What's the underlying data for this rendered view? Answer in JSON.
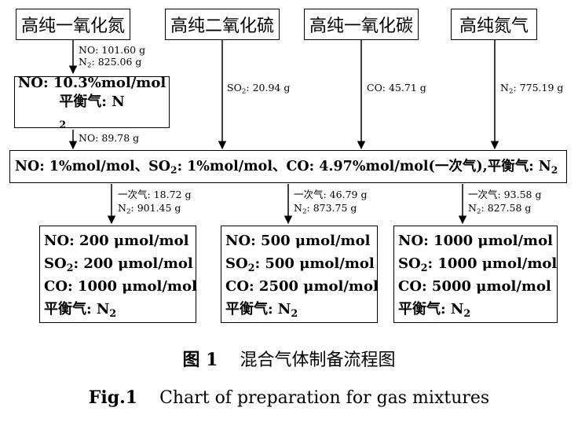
{
  "sources": [
    {
      "id": "no",
      "label": "高纯一氧化氮"
    },
    {
      "id": "so2",
      "label": "高纯二氧化硫"
    },
    {
      "id": "co",
      "label": "高纯一氧化碳"
    },
    {
      "id": "n2",
      "label": "高纯氮气"
    }
  ],
  "flow_no_source": {
    "no_mass": "NO: 101.60 g",
    "n2_prefix": "N",
    "n2_sub": "2",
    "n2_mass": ": 825.06 g"
  },
  "intermediate_no": {
    "line1": "NO: 10.3%mol/mol",
    "line2_prefix": "平衡气: N",
    "line2_sub": "2",
    "out_mass": "NO: 89.78 g"
  },
  "flow_so2": {
    "prefix": "SO",
    "sub": "2",
    "mass": ": 20.94 g"
  },
  "flow_co": {
    "label": "CO: 45.71 g"
  },
  "flow_n2": {
    "prefix": "N",
    "sub": "2",
    "mass": ": 775.19 g"
  },
  "primary_mix": {
    "part1": "NO: 1%mol/mol、SO",
    "sub1": "2",
    "part2": ": 1%mol/mol、CO: 4.97%mol/mol(一次气),平衡气: N",
    "sub2": "2"
  },
  "branches": [
    {
      "primary_gas": "一次气: 18.72 g",
      "n2_prefix": "N",
      "n2_sub": "2",
      "n2_mass": ": 901.45 g",
      "no": "NO: 200 μmol/mol",
      "so2_prefix": "SO",
      "so2_sub": "2",
      "so2": ": 200 μmol/mol",
      "co": "CO: 1000 μmol/mol",
      "bal_prefix": "平衡气: N",
      "bal_sub": "2"
    },
    {
      "primary_gas": "一次气: 46.79 g",
      "n2_prefix": "N",
      "n2_sub": "2",
      "n2_mass": ": 873.75 g",
      "no": "NO: 500 μmol/mol",
      "so2_prefix": "SO",
      "so2_sub": "2",
      "so2": ": 500 μmol/mol",
      "co": "CO: 2500 μmol/mol",
      "bal_prefix": "平衡气: N",
      "bal_sub": "2"
    },
    {
      "primary_gas": "一次气: 93.58 g",
      "n2_prefix": "N",
      "n2_sub": "2",
      "n2_mass": ": 827.58 g",
      "no": "NO: 1000 μmol/mol",
      "so2_prefix": "SO",
      "so2_sub": "2",
      "so2": ": 1000 μmol/mol",
      "co": "CO: 5000 μmol/mol",
      "bal_prefix": "平衡气: N",
      "bal_sub": "2"
    }
  ],
  "caption": {
    "cn_num": "图 1",
    "cn_title": "混合气体制备流程图",
    "en_num": "Fig.1",
    "en_title": "Chart of preparation for gas mixtures"
  }
}
